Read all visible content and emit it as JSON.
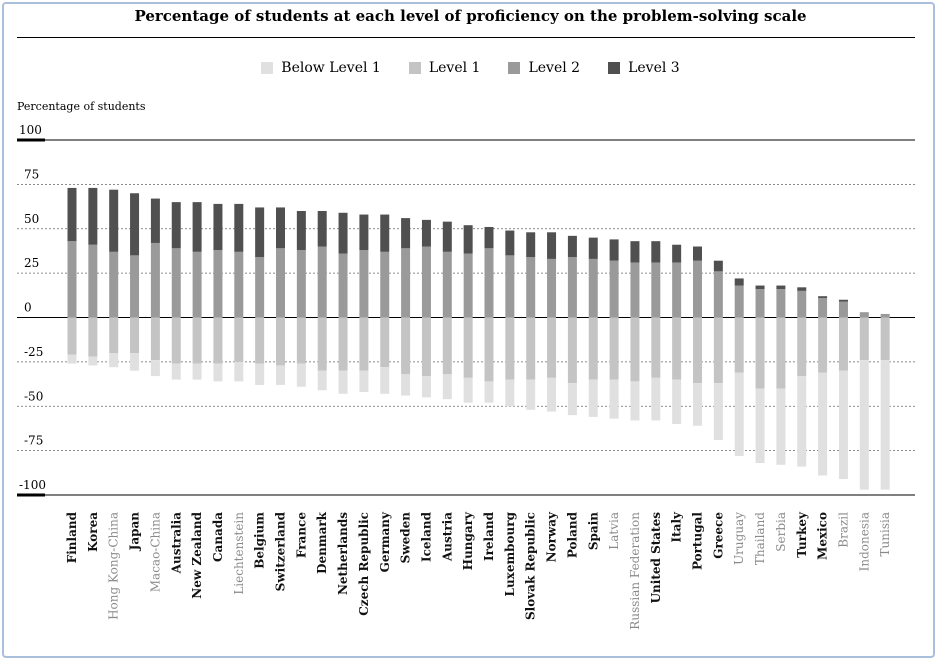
{
  "chart_data": {
    "type": "bar",
    "stacked": "diverging",
    "title": "Percentage of students at each level of proficiency on the problem-solving scale",
    "ylabel": "Percentage of students",
    "ylim": [
      -100,
      100
    ],
    "yticks": [
      100,
      75,
      50,
      25,
      0,
      -25,
      -50,
      -75,
      -100
    ],
    "grid": true,
    "legend_placement": "top",
    "categories": [
      "Finland",
      "Korea",
      "Hong Kong-China",
      "Japan",
      "Macao-China",
      "Australia",
      "New Zealand",
      "Canada",
      "Liechtenstein",
      "Belgium",
      "Switzerland",
      "France",
      "Denmark",
      "Netherlands",
      "Czech Republic",
      "Germany",
      "Sweden",
      "Iceland",
      "Austria",
      "Hungary",
      "Ireland",
      "Luxembourg",
      "Slovak Republic",
      "Norway",
      "Poland",
      "Spain",
      "Latvia",
      "Russian Federation",
      "United States",
      "Italy",
      "Portugal",
      "Greece",
      "Uruguay",
      "Thailand",
      "Serbia",
      "Turkey",
      "Mexico",
      "Brazil",
      "Indonesia",
      "Tunisia"
    ],
    "category_style": [
      "bold",
      "bold",
      "grey",
      "bold",
      "grey",
      "bold",
      "bold",
      "bold",
      "grey",
      "bold",
      "bold",
      "bold",
      "bold",
      "bold",
      "bold",
      "bold",
      "bold",
      "bold",
      "bold",
      "bold",
      "bold",
      "bold",
      "bold",
      "bold",
      "bold",
      "bold",
      "grey",
      "grey",
      "bold",
      "bold",
      "bold",
      "bold",
      "grey",
      "grey",
      "grey",
      "bold",
      "bold",
      "grey",
      "grey",
      "grey"
    ],
    "series": [
      {
        "name": "Below Level 1",
        "color": "#e0e0e0",
        "values": [
          -5,
          -5,
          -8,
          -10,
          -9,
          -9,
          -9,
          -10,
          -11,
          -12,
          -11,
          -13,
          -11,
          -13,
          -12,
          -15,
          -12,
          -12,
          -14,
          -14,
          -12,
          -15,
          -17,
          -19,
          -18,
          -21,
          -22,
          -22,
          -24,
          -25,
          -24,
          -32,
          -47,
          -42,
          -43,
          -51,
          -58,
          -61,
          -73,
          -73
        ]
      },
      {
        "name": "Level 1",
        "color": "#c4c4c4",
        "values": [
          -21,
          -22,
          -20,
          -20,
          -24,
          -26,
          -26,
          -26,
          -25,
          -26,
          -27,
          -26,
          -30,
          -30,
          -30,
          -28,
          -32,
          -33,
          -32,
          -34,
          -36,
          -35,
          -35,
          -34,
          -37,
          -35,
          -35,
          -36,
          -34,
          -35,
          -37,
          -37,
          -31,
          -40,
          -40,
          -33,
          -31,
          -30,
          -24,
          -24
        ]
      },
      {
        "name": "Level 2",
        "color": "#9a9a9a",
        "values": [
          43,
          41,
          37,
          35,
          42,
          39,
          37,
          38,
          37,
          34,
          39,
          38,
          40,
          36,
          38,
          37,
          39,
          40,
          37,
          36,
          39,
          35,
          34,
          33,
          34,
          33,
          32,
          31,
          31,
          31,
          32,
          26,
          18,
          16,
          16,
          15,
          11,
          9,
          3,
          2
        ]
      },
      {
        "name": "Level 3",
        "color": "#505050",
        "values": [
          30,
          32,
          35,
          35,
          25,
          26,
          28,
          26,
          27,
          28,
          23,
          22,
          20,
          23,
          20,
          21,
          17,
          15,
          17,
          16,
          12,
          14,
          14,
          15,
          12,
          12,
          12,
          12,
          12,
          10,
          8,
          6,
          4,
          2,
          2,
          2,
          1,
          1,
          0,
          0
        ]
      }
    ]
  },
  "colors": {
    "grey_label": "#8a8a8a",
    "bold_label": "#111111",
    "frame_border": "#a9bfdc"
  }
}
